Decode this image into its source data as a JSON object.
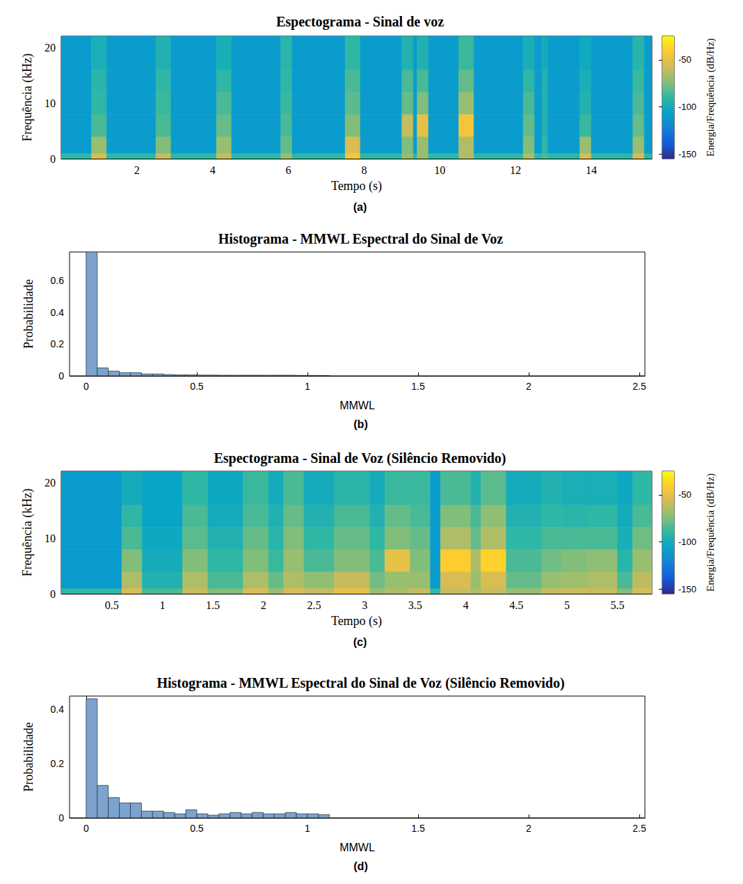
{
  "chart_data": [
    {
      "type": "heatmap",
      "title": "Espectograma - Sinal de voz",
      "panel": "(a)",
      "x_label": "Tempo (s)",
      "y_label": "Frequência (kHz)",
      "x_bins": [
        0,
        0.8,
        1.2,
        2.5,
        2.9,
        4.1,
        4.5,
        5.8,
        6.1,
        7.5,
        7.9,
        9.0,
        9.3,
        9.4,
        9.7,
        10.5,
        10.9,
        12.2,
        12.5,
        12.7,
        12.85,
        13.7,
        14.0,
        15.1,
        15.4,
        15.6
      ],
      "y_bins": [
        0,
        1,
        4,
        8,
        12,
        16,
        22.05
      ],
      "values": [
        [
          -90,
          -110,
          -110,
          -110,
          -110,
          -110
        ],
        [
          -55,
          -70,
          -85,
          -90,
          -92,
          -98
        ],
        [
          -90,
          -110,
          -110,
          -110,
          -110,
          -110
        ],
        [
          -60,
          -75,
          -85,
          -88,
          -90,
          -95
        ],
        [
          -90,
          -110,
          -110,
          -110,
          -110,
          -110
        ],
        [
          -60,
          -70,
          -80,
          -85,
          -90,
          -98
        ],
        [
          -90,
          -110,
          -110,
          -110,
          -110,
          -110
        ],
        [
          -70,
          -80,
          -85,
          -88,
          -90,
          -92
        ],
        [
          -90,
          -110,
          -110,
          -110,
          -110,
          -110
        ],
        [
          -45,
          -55,
          -75,
          -82,
          -85,
          -90
        ],
        [
          -90,
          -110,
          -110,
          -110,
          -110,
          -110
        ],
        [
          -70,
          -75,
          -60,
          -80,
          -85,
          -95
        ],
        [
          -90,
          -110,
          -110,
          -110,
          -110,
          -110
        ],
        [
          -70,
          -70,
          -50,
          -75,
          -85,
          -95
        ],
        [
          -90,
          -110,
          -110,
          -110,
          -110,
          -110
        ],
        [
          -65,
          -65,
          -45,
          -70,
          -80,
          -88
        ],
        [
          -90,
          -110,
          -110,
          -110,
          -110,
          -110
        ],
        [
          -65,
          -75,
          -80,
          -85,
          -90,
          -98
        ],
        [
          -90,
          -110,
          -110,
          -110,
          -110,
          -110
        ],
        [
          -85,
          -90,
          -95,
          -95,
          -95,
          -100
        ],
        [
          -90,
          -110,
          -110,
          -110,
          -110,
          -110
        ],
        [
          -55,
          -70,
          -88,
          -95,
          -98,
          -102
        ],
        [
          -90,
          -110,
          -110,
          -110,
          -110,
          -110
        ],
        [
          -55,
          -70,
          -80,
          -85,
          -88,
          -92
        ],
        [
          -90,
          -110,
          -110,
          -110,
          -110,
          -110
        ]
      ],
      "xlim": [
        0,
        15.6
      ],
      "xticks": [
        2,
        4,
        6,
        8,
        10,
        12,
        14
      ],
      "ylim": [
        0,
        22.05
      ],
      "yticks": [
        0,
        10,
        20
      ],
      "grid": false,
      "colorbar": {
        "label": "Energia/Frequência (dB/Hz)",
        "range": [
          -155,
          -25
        ],
        "ticks": [
          -150,
          -100,
          -50
        ]
      }
    },
    {
      "type": "histogram",
      "title": "Histograma - MMWL Espectral do Sinal de Voz",
      "panel": "(b)",
      "x_label": "MMWL",
      "y_label": "Probabilidade",
      "bins": [
        0,
        0.05,
        0.1,
        0.15,
        0.2,
        0.25,
        0.3,
        0.35,
        0.4,
        0.45,
        0.5,
        0.55,
        0.6,
        0.65,
        0.7,
        0.75,
        0.8,
        0.85,
        0.9,
        0.95,
        1.0,
        1.05,
        1.1
      ],
      "values": [
        0.78,
        0.05,
        0.03,
        0.02,
        0.02,
        0.012,
        0.012,
        0.008,
        0.006,
        0.006,
        0.005,
        0.005,
        0.004,
        0.004,
        0.004,
        0.004,
        0.004,
        0.004,
        0.004,
        0.003,
        0.003,
        0.002
      ],
      "color": "#7ba3cd",
      "xlim": [
        -0.075,
        2.525
      ],
      "xticks": [
        0,
        0.5,
        1,
        1.5,
        2,
        2.5
      ],
      "ylim": [
        0,
        0.78
      ],
      "yticks": [
        0,
        0.2,
        0.4,
        0.6
      ],
      "grid": false
    },
    {
      "type": "heatmap",
      "title": "Espectograma - Sinal de Voz (Silêncio Removido)",
      "panel": "(c)",
      "x_label": "Tempo (s)",
      "y_label": "Frequência (kHz)",
      "x_bins": [
        0,
        0.6,
        0.8,
        1.2,
        1.45,
        1.8,
        2.05,
        2.2,
        2.4,
        2.7,
        3.05,
        3.2,
        3.45,
        3.65,
        3.75,
        4.05,
        4.15,
        4.4,
        4.75,
        4.95,
        5.2,
        5.5,
        5.65,
        5.84
      ],
      "y_bins": [
        0,
        1,
        4,
        8,
        12,
        16,
        22.05
      ],
      "values": [
        [
          -90,
          -110,
          -110,
          -110,
          -110,
          -110
        ],
        [
          -55,
          -65,
          -75,
          -85,
          -90,
          -100
        ],
        [
          -85,
          -95,
          -100,
          -103,
          -105,
          -105
        ],
        [
          -60,
          -65,
          -75,
          -82,
          -85,
          -90
        ],
        [
          -75,
          -85,
          -90,
          -95,
          -100,
          -103
        ],
        [
          -55,
          -65,
          -75,
          -80,
          -85,
          -88
        ],
        [
          -70,
          -80,
          -88,
          -92,
          -95,
          -100
        ],
        [
          -55,
          -65,
          -70,
          -75,
          -80,
          -85
        ],
        [
          -60,
          -72,
          -85,
          -90,
          -95,
          -100
        ],
        [
          -50,
          -60,
          -75,
          -80,
          -85,
          -92
        ],
        [
          -70,
          -78,
          -85,
          -90,
          -95,
          -100
        ],
        [
          -65,
          -70,
          -50,
          -75,
          -80,
          -88
        ],
        [
          -60,
          -70,
          -75,
          -80,
          -85,
          -88
        ],
        [
          -90,
          -110,
          -110,
          -110,
          -110,
          -110
        ],
        [
          -60,
          -55,
          -40,
          -65,
          -75,
          -85
        ],
        [
          -65,
          -70,
          -65,
          -80,
          -85,
          -95
        ],
        [
          -60,
          -55,
          -38,
          -65,
          -72,
          -82
        ],
        [
          -70,
          -80,
          -85,
          -90,
          -95,
          -100
        ],
        [
          -60,
          -70,
          -78,
          -85,
          -90,
          -95
        ],
        [
          -58,
          -68,
          -75,
          -85,
          -92,
          -98
        ],
        [
          -60,
          -65,
          -72,
          -85,
          -90,
          -98
        ],
        [
          -75,
          -85,
          -92,
          -98,
          -100,
          -103
        ],
        [
          -55,
          -62,
          -70,
          -78,
          -85,
          -90
        ]
      ],
      "xlim": [
        0,
        5.84
      ],
      "xticks": [
        0.5,
        1,
        1.5,
        2,
        2.5,
        3,
        3.5,
        4,
        4.5,
        5,
        5.5
      ],
      "ylim": [
        0,
        22.05
      ],
      "yticks": [
        0,
        10,
        20
      ],
      "grid": false,
      "colorbar": {
        "label": "Energia/Frequência (dB/Hz)",
        "range": [
          -155,
          -25
        ],
        "ticks": [
          -150,
          -100,
          -50
        ]
      }
    },
    {
      "type": "histogram",
      "title": "Histograma - MMWL Espectral do Sinal de Voz (Silêncio Removido)",
      "panel": "(d)",
      "x_label": "MMWL",
      "y_label": "Probabilidade",
      "bins": [
        0,
        0.05,
        0.1,
        0.15,
        0.2,
        0.25,
        0.3,
        0.35,
        0.4,
        0.45,
        0.5,
        0.55,
        0.6,
        0.65,
        0.7,
        0.75,
        0.8,
        0.85,
        0.9,
        0.95,
        1.0,
        1.05,
        1.1
      ],
      "values": [
        0.44,
        0.12,
        0.075,
        0.055,
        0.055,
        0.025,
        0.025,
        0.02,
        0.015,
        0.03,
        0.015,
        0.01,
        0.015,
        0.02,
        0.015,
        0.02,
        0.015,
        0.015,
        0.02,
        0.015,
        0.015,
        0.012
      ],
      "color": "#7ba3cd",
      "xlim": [
        -0.075,
        2.525
      ],
      "xticks": [
        0,
        0.5,
        1,
        1.5,
        2,
        2.5
      ],
      "ylim": [
        0,
        0.45
      ],
      "yticks": [
        0,
        0.2,
        0.4
      ],
      "grid": false
    }
  ]
}
